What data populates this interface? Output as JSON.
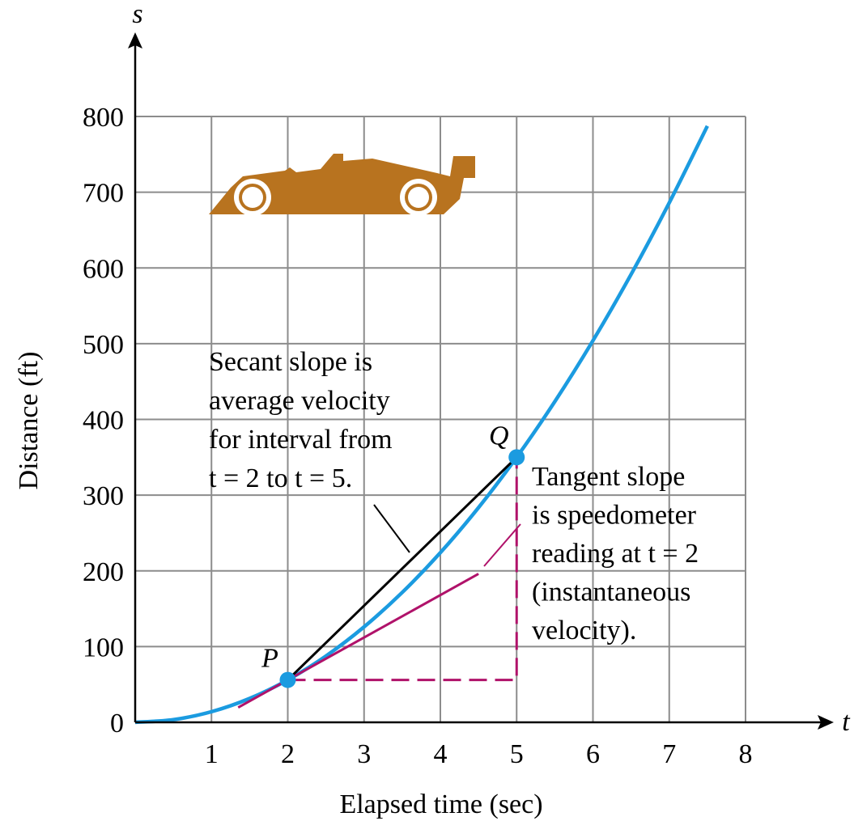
{
  "chart_data": {
    "type": "line",
    "x_label": "Elapsed time (sec)",
    "y_label": "Distance (ft)",
    "x_axis_symbol": "t",
    "y_axis_symbol": "s",
    "xlim": [
      0,
      8
    ],
    "ylim": [
      0,
      800
    ],
    "xticks": [
      1,
      2,
      3,
      4,
      5,
      6,
      7,
      8
    ],
    "yticks": [
      0,
      100,
      200,
      300,
      400,
      500,
      600,
      700,
      800
    ],
    "grid": true,
    "series": [
      {
        "color": "#1b9be0",
        "smooth": true,
        "x": [
          0,
          0.5,
          1,
          1.5,
          2,
          2.5,
          3,
          3.5,
          4,
          4.5,
          5,
          5.5,
          6,
          6.5,
          7,
          7.5
        ],
        "values": [
          0,
          3.5,
          14,
          31.5,
          56,
          87.5,
          126,
          171.5,
          224,
          283.5,
          350,
          423.5,
          504,
          591.5,
          686,
          787.5
        ]
      },
      {
        "color": "#000000",
        "x": [
          2,
          5
        ],
        "values": [
          56,
          350
        ]
      },
      {
        "color": "#b0126a",
        "x": [
          1.35,
          4.5
        ],
        "values": [
          19.6,
          196
        ]
      },
      {
        "color": "#b0126a",
        "dashed": true,
        "x": [
          2,
          5,
          5
        ],
        "values": [
          56,
          56,
          350
        ]
      }
    ],
    "points": [
      {
        "label": "P",
        "x": 2,
        "value": 56,
        "color": "#1b9be0"
      },
      {
        "label": "Q",
        "x": 5,
        "value": 350,
        "color": "#1b9be0"
      }
    ],
    "annotations": [
      {
        "lines": [
          "Secant slope is",
          "average velocity",
          "for interval from",
          "t = 2 to t = 5."
        ]
      },
      {
        "lines": [
          "Tangent slope",
          "is speedometer",
          "reading at t = 2",
          "(instantaneous",
          "velocity)."
        ]
      }
    ]
  }
}
